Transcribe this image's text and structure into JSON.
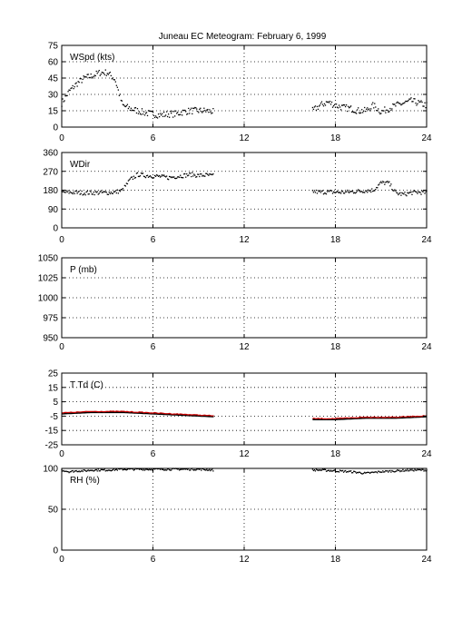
{
  "title": "Juneau EC Meteogram:  February  6, 1999",
  "colors": {
    "axes": "#000000",
    "dots": "#000000",
    "temp": "#cc0000",
    "dew": "#000000"
  },
  "chart_data": [
    {
      "type": "scatter",
      "label": "WSpd (kts)",
      "xlim": [
        0,
        24
      ],
      "ylim": [
        0,
        75
      ],
      "xticks": [
        0,
        6,
        12,
        18,
        24
      ],
      "yticks": [
        0,
        15,
        30,
        45,
        60,
        75
      ],
      "grid": true,
      "segments": [
        {
          "x": [
            0,
            0.5,
            1,
            1.5,
            2,
            2.5,
            3,
            3.5,
            4,
            4.5,
            5,
            5.5,
            6,
            6.5,
            7,
            7.5,
            8,
            8.5,
            9,
            9.5,
            10
          ],
          "y": [
            22,
            33,
            40,
            45,
            47,
            50,
            50,
            44,
            20,
            17,
            15,
            13,
            12,
            11,
            12,
            12,
            14,
            15,
            15,
            15,
            14
          ]
        },
        {
          "x": [
            16.5,
            17,
            17.5,
            18,
            18.5,
            19,
            19.5,
            20,
            20.5,
            21,
            21.5,
            22,
            22.5,
            23,
            23.5,
            24
          ],
          "y": [
            15,
            20,
            23,
            20,
            18,
            17,
            15,
            15,
            20,
            14,
            17,
            20,
            22,
            24,
            22,
            20
          ]
        }
      ]
    },
    {
      "type": "scatter",
      "label": "WDir",
      "xlim": [
        0,
        24
      ],
      "ylim": [
        0,
        360
      ],
      "xticks": [
        0,
        6,
        12,
        18,
        24
      ],
      "yticks": [
        0,
        90,
        180,
        270,
        360
      ],
      "grid": true,
      "segments": [
        {
          "x": [
            0,
            0.5,
            1,
            1.5,
            2,
            2.5,
            3,
            3.5,
            4,
            4.5,
            5,
            5.5,
            6,
            6.5,
            7,
            7.5,
            8,
            8.5,
            9,
            9.5,
            10
          ],
          "y": [
            170,
            170,
            168,
            167,
            168,
            168,
            168,
            170,
            180,
            230,
            255,
            250,
            248,
            245,
            240,
            245,
            250,
            255,
            250,
            252,
            248
          ]
        },
        {
          "x": [
            16.5,
            17,
            17.5,
            18,
            18.5,
            19,
            19.5,
            20,
            20.5,
            21,
            21.5,
            22,
            22.5,
            23,
            23.5,
            24
          ],
          "y": [
            175,
            170,
            172,
            170,
            170,
            172,
            175,
            178,
            180,
            215,
            215,
            165,
            160,
            168,
            170,
            168
          ]
        }
      ]
    },
    {
      "type": "line",
      "label": "P (mb)",
      "xlim": [
        0,
        24
      ],
      "ylim": [
        950,
        1050
      ],
      "xticks": [
        0,
        6,
        12,
        18,
        24
      ],
      "yticks": [
        950,
        975,
        1000,
        1025,
        1050
      ],
      "grid": true,
      "segments": []
    },
    {
      "type": "line",
      "label": "T Td (C)",
      "xlim": [
        0,
        24
      ],
      "ylim": [
        -25,
        25
      ],
      "xticks": [
        0,
        6,
        12,
        18,
        24
      ],
      "yticks": [
        -25,
        -15,
        -5,
        5,
        15,
        25
      ],
      "grid": true,
      "segments": [
        {
          "x": [
            0,
            2,
            4,
            6,
            8,
            10
          ],
          "y": [
            -3,
            -2,
            -2,
            -3,
            -4,
            -5
          ]
        },
        {
          "x": [
            16.5,
            18,
            20,
            22,
            24
          ],
          "y": [
            -7,
            -7,
            -6,
            -6,
            -5
          ]
        }
      ]
    },
    {
      "type": "scatter",
      "label": "RH (%)",
      "xlim": [
        0,
        24
      ],
      "ylim": [
        0,
        100
      ],
      "xticks": [
        0,
        6,
        12,
        18,
        24
      ],
      "yticks": [
        0,
        50,
        100
      ],
      "grid": true,
      "segments": [
        {
          "x": [
            0,
            0.5,
            1,
            1.5,
            2,
            3,
            4,
            5,
            6,
            7,
            8,
            9,
            10
          ],
          "y": [
            98,
            96,
            97,
            97,
            98,
            98,
            99,
            99,
            99,
            99,
            99,
            99,
            98
          ]
        },
        {
          "x": [
            16.5,
            17,
            18,
            19,
            20,
            21,
            22,
            23,
            24
          ],
          "y": [
            98,
            98,
            97,
            96,
            94,
            96,
            97,
            98,
            98
          ]
        }
      ]
    }
  ]
}
